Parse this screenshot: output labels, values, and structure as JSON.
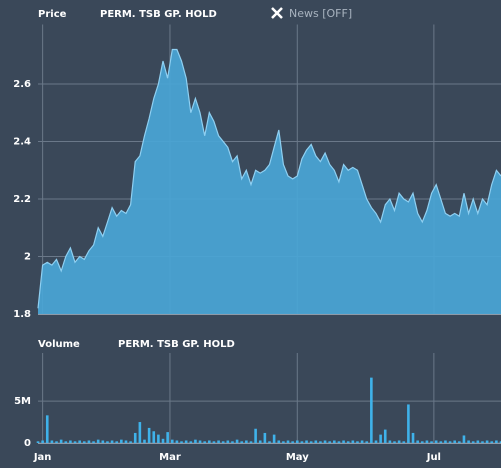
{
  "news": "News [OFF]",
  "chart_data": [
    {
      "type": "area",
      "title": "Price",
      "subtitle": "PERM. TSB GP. HOLD",
      "series": [
        {
          "color": "#4aa6d6",
          "values": [
            1.82,
            1.97,
            1.98,
            1.97,
            1.99,
            1.95,
            2.0,
            2.03,
            1.98,
            2.0,
            1.99,
            2.02,
            2.04,
            2.1,
            2.07,
            2.12,
            2.17,
            2.14,
            2.16,
            2.15,
            2.18,
            2.33,
            2.35,
            2.42,
            2.48,
            2.55,
            2.6,
            2.68,
            2.62,
            2.72,
            2.72,
            2.68,
            2.62,
            2.5,
            2.55,
            2.5,
            2.42,
            2.5,
            2.47,
            2.42,
            2.4,
            2.38,
            2.33,
            2.35,
            2.27,
            2.3,
            2.25,
            2.3,
            2.29,
            2.3,
            2.32,
            2.38,
            2.44,
            2.32,
            2.28,
            2.27,
            2.28,
            2.34,
            2.37,
            2.39,
            2.35,
            2.33,
            2.36,
            2.32,
            2.3,
            2.26,
            2.32,
            2.3,
            2.31,
            2.3,
            2.25,
            2.2,
            2.17,
            2.15,
            2.12,
            2.18,
            2.2,
            2.16,
            2.22,
            2.2,
            2.19,
            2.22,
            2.15,
            2.12,
            2.16,
            2.22,
            2.25,
            2.2,
            2.15,
            2.14,
            2.15,
            2.14,
            2.22,
            2.15,
            2.2,
            2.15,
            2.2,
            2.18,
            2.25,
            2.3,
            2.28
          ]
        }
      ],
      "xlim": [
        0,
        100
      ],
      "xticks": [
        {
          "value": 1,
          "label": "Jan"
        },
        {
          "value": 28.5,
          "label": "Mar"
        },
        {
          "value": 56,
          "label": "May"
        },
        {
          "value": 85.5,
          "label": "Jul"
        }
      ],
      "ylim": [
        1.8,
        2.8
      ],
      "yticks": [
        1.8,
        2.0,
        2.2,
        2.4,
        2.6
      ],
      "grid": true
    },
    {
      "type": "bar",
      "title": "Volume",
      "subtitle": "PERM. TSB GP. HOLD",
      "series": [
        {
          "color": "#3fb2ea",
          "values": [
            0.2,
            0.3,
            3.3,
            0.3,
            0.2,
            0.4,
            0.2,
            0.3,
            0.2,
            0.3,
            0.2,
            0.3,
            0.2,
            0.4,
            0.3,
            0.2,
            0.3,
            0.2,
            0.4,
            0.3,
            0.2,
            1.2,
            2.5,
            0.4,
            1.8,
            1.4,
            1.0,
            0.5,
            1.3,
            0.4,
            0.3,
            0.2,
            0.3,
            0.2,
            0.4,
            0.3,
            0.2,
            0.3,
            0.2,
            0.3,
            0.2,
            0.3,
            0.2,
            0.4,
            0.2,
            0.3,
            0.2,
            1.7,
            0.3,
            1.2,
            0.2,
            1.0,
            0.3,
            0.2,
            0.3,
            0.2,
            0.3,
            0.2,
            0.3,
            0.2,
            0.3,
            0.2,
            0.3,
            0.2,
            0.3,
            0.2,
            0.3,
            0.2,
            0.3,
            0.2,
            0.3,
            0.2,
            7.8,
            0.3,
            1.0,
            1.6,
            0.3,
            0.2,
            0.3,
            0.2,
            4.6,
            1.2,
            0.3,
            0.2,
            0.3,
            0.2,
            0.3,
            0.2,
            0.3,
            0.2,
            0.3,
            0.2,
            0.9,
            0.3,
            0.2,
            0.3,
            0.2,
            0.3,
            0.2,
            0.3,
            0.2
          ]
        }
      ],
      "xlim": [
        0,
        100
      ],
      "xticks": [
        {
          "value": 1,
          "label": "Jan"
        },
        {
          "value": 28.5,
          "label": "Mar"
        },
        {
          "value": 56,
          "label": "May"
        },
        {
          "value": 85.5,
          "label": "Jul"
        }
      ],
      "ylim": [
        0,
        10.5
      ],
      "yticks": [
        0,
        {
          "value": 5,
          "label": "5M"
        }
      ],
      "grid": true
    }
  ]
}
